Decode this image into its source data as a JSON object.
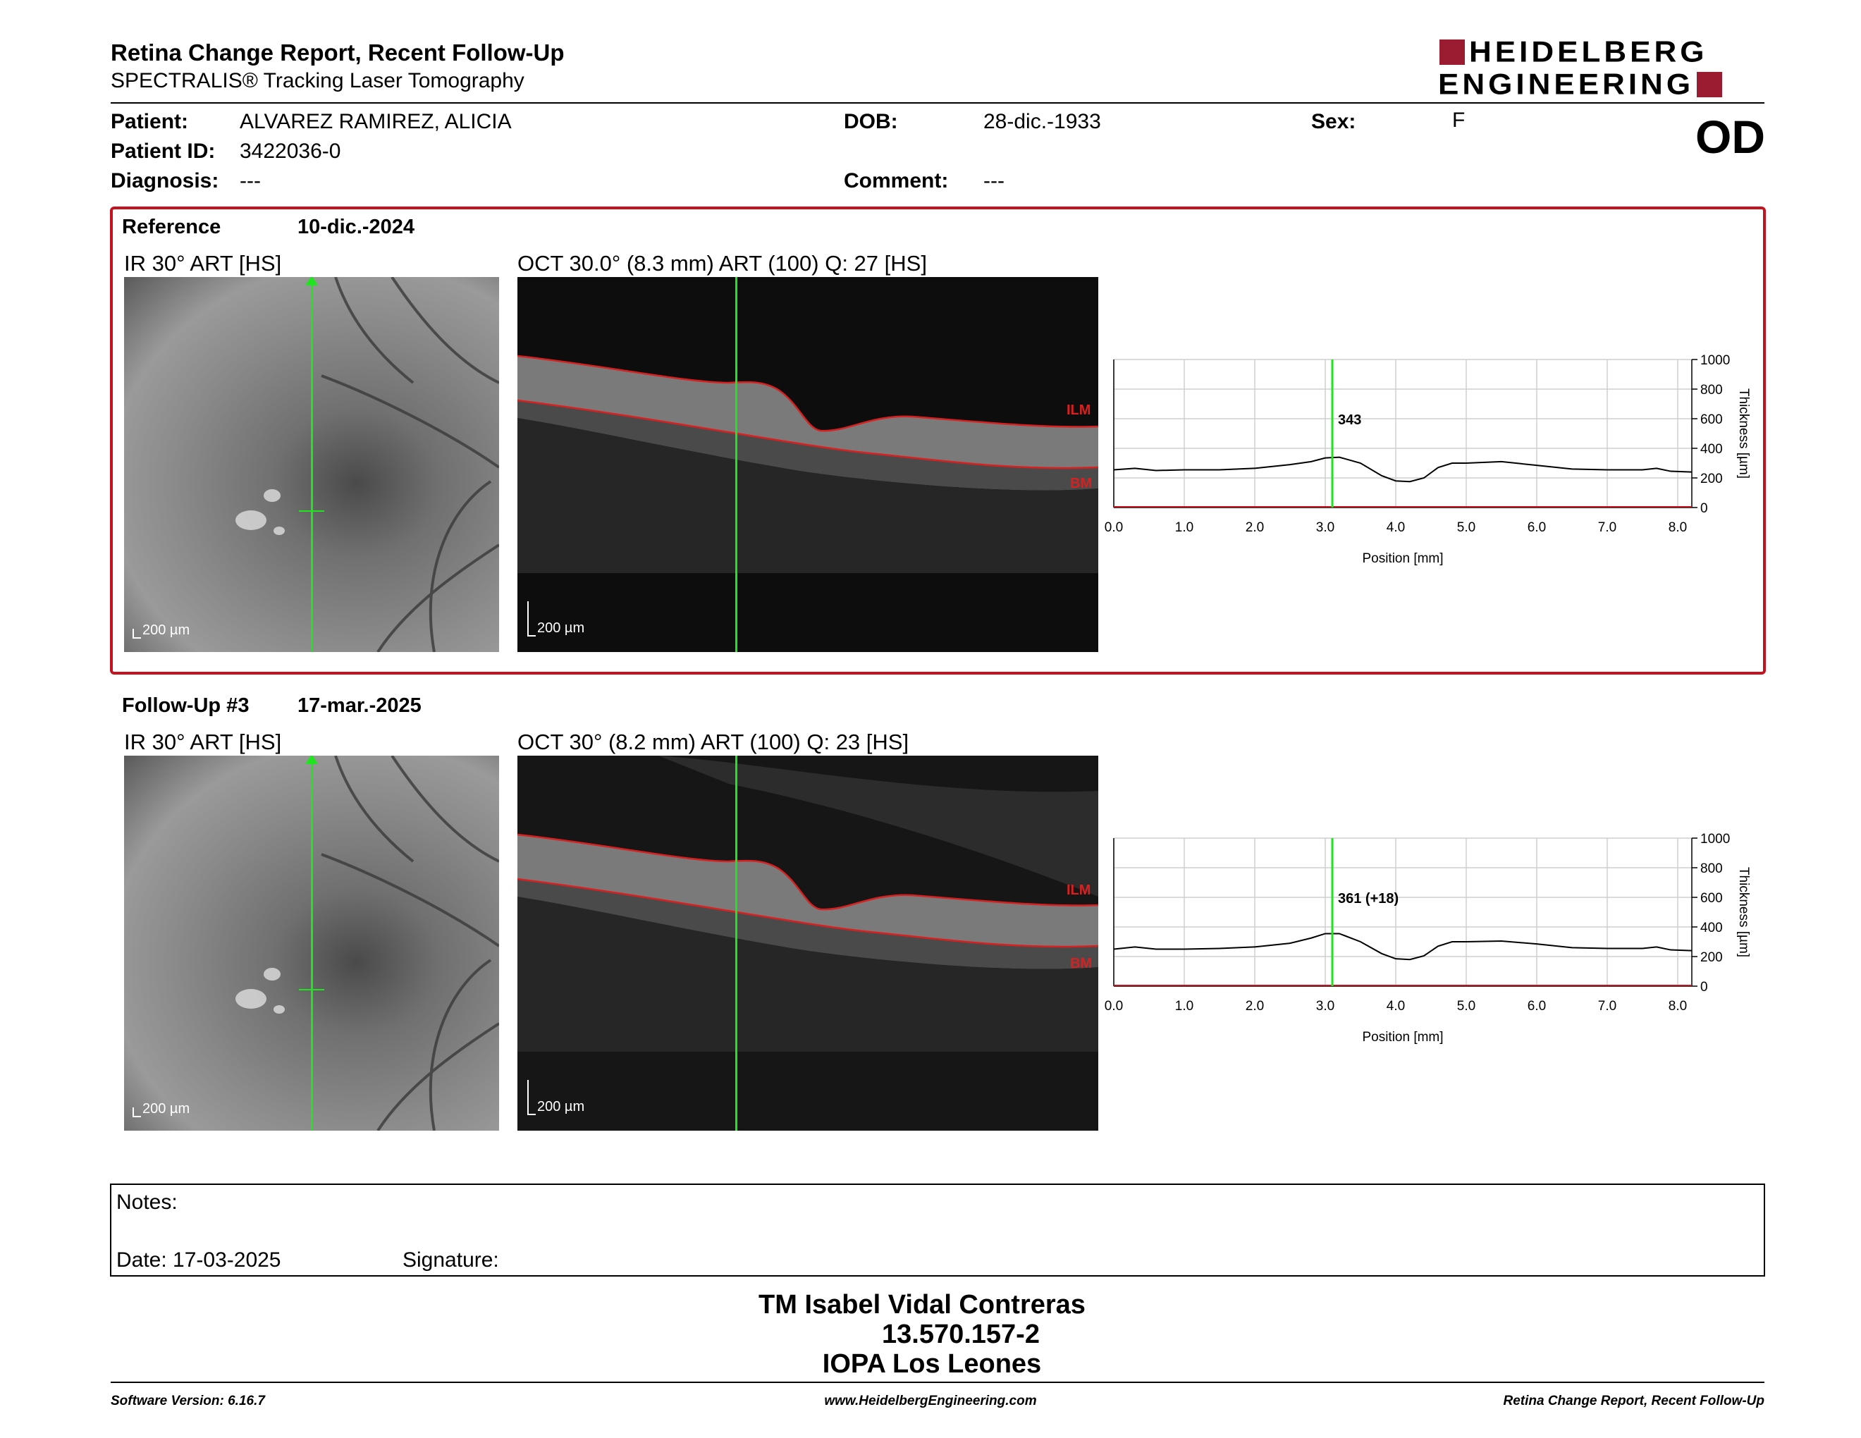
{
  "header": {
    "title": "Retina Change Report, Recent Follow-Up",
    "subtitle": "SPECTRALIS® Tracking Laser Tomography",
    "logo_line1": "HEIDELBERG",
    "logo_line2": "ENGINEERING",
    "eye": "OD"
  },
  "patient": {
    "name_label": "Patient:",
    "name": "ALVAREZ RAMIREZ, ALICIA",
    "id_label": "Patient ID:",
    "id": "3422036-0",
    "diagnosis_label": "Diagnosis:",
    "diagnosis": "---",
    "dob_label": "DOB:",
    "dob": "28-dic.-1933",
    "comment_label": "Comment:",
    "comment": "---",
    "sex_label": "Sex:",
    "sex": "F"
  },
  "reference": {
    "label": "Reference",
    "date": "10-dic.-2024",
    "ir_title": "IR 30° ART [HS]",
    "oct_title": "OCT 30.0° (8.3 mm) ART (100) Q: 27 [HS]",
    "scale": "200 µm",
    "ilm": "ILM",
    "bm": "BM",
    "marker_value": "343"
  },
  "followup": {
    "label": "Follow-Up #3",
    "date": "17-mar.-2025",
    "ir_title": "IR 30° ART [HS]",
    "oct_title": "OCT 30° (8.2 mm) ART (100) Q: 23 [HS]",
    "scale": "200 µm",
    "ilm": "ILM",
    "bm": "BM",
    "marker_value": "361 (+18)"
  },
  "chart_data": [
    {
      "type": "line",
      "xlabel": "Position [mm]",
      "ylabel": "Thickness [µm]",
      "xlim": [
        0,
        8.2
      ],
      "ylim": [
        0,
        1000
      ],
      "xticks": [
        "0.0",
        "1.0",
        "2.0",
        "3.0",
        "4.0",
        "5.0",
        "6.0",
        "7.0",
        "8.0"
      ],
      "yticks": [
        "0",
        "200",
        "400",
        "600",
        "800",
        "1000"
      ],
      "marker_x": 3.1,
      "series": [
        {
          "x": [
            0,
            0.3,
            0.6,
            1.0,
            1.5,
            2.0,
            2.5,
            2.8,
            3.0,
            3.2,
            3.5,
            3.8,
            4.0,
            4.2,
            4.4,
            4.6,
            4.8,
            5.0,
            5.5,
            6.0,
            6.5,
            7.0,
            7.5,
            7.7,
            7.9,
            8.2
          ],
          "values": [
            255,
            265,
            250,
            255,
            255,
            265,
            290,
            310,
            335,
            340,
            300,
            215,
            180,
            175,
            200,
            270,
            300,
            300,
            310,
            285,
            260,
            255,
            255,
            265,
            245,
            240
          ]
        }
      ]
    },
    {
      "type": "line",
      "xlabel": "Position [mm]",
      "ylabel": "Thickness [µm]",
      "xlim": [
        0,
        8.2
      ],
      "ylim": [
        0,
        1000
      ],
      "xticks": [
        "0.0",
        "1.0",
        "2.0",
        "3.0",
        "4.0",
        "5.0",
        "6.0",
        "7.0",
        "8.0"
      ],
      "yticks": [
        "0",
        "200",
        "400",
        "600",
        "800",
        "1000"
      ],
      "marker_x": 3.1,
      "series": [
        {
          "x": [
            0,
            0.3,
            0.6,
            1.0,
            1.5,
            2.0,
            2.5,
            2.8,
            3.0,
            3.2,
            3.5,
            3.8,
            4.0,
            4.2,
            4.4,
            4.6,
            4.8,
            5.0,
            5.5,
            6.0,
            6.5,
            7.0,
            7.5,
            7.7,
            7.9,
            8.2
          ],
          "values": [
            250,
            265,
            250,
            250,
            255,
            265,
            290,
            325,
            355,
            355,
            300,
            220,
            185,
            180,
            205,
            270,
            300,
            300,
            305,
            285,
            260,
            255,
            255,
            265,
            245,
            240
          ]
        }
      ]
    }
  ],
  "notes": {
    "notes_label": "Notes:",
    "date_label": "Date: 17-03-2025",
    "signature_label": "Signature:"
  },
  "signature_block": {
    "name": "TM Isabel Vidal Contreras",
    "rut": "13.570.157-2",
    "org": "IOPA Los Leones"
  },
  "footer": {
    "version": "Software Version: 6.16.7",
    "url": "www.HeidelbergEngineering.com",
    "report": "Retina Change Report, Recent Follow-Up"
  }
}
